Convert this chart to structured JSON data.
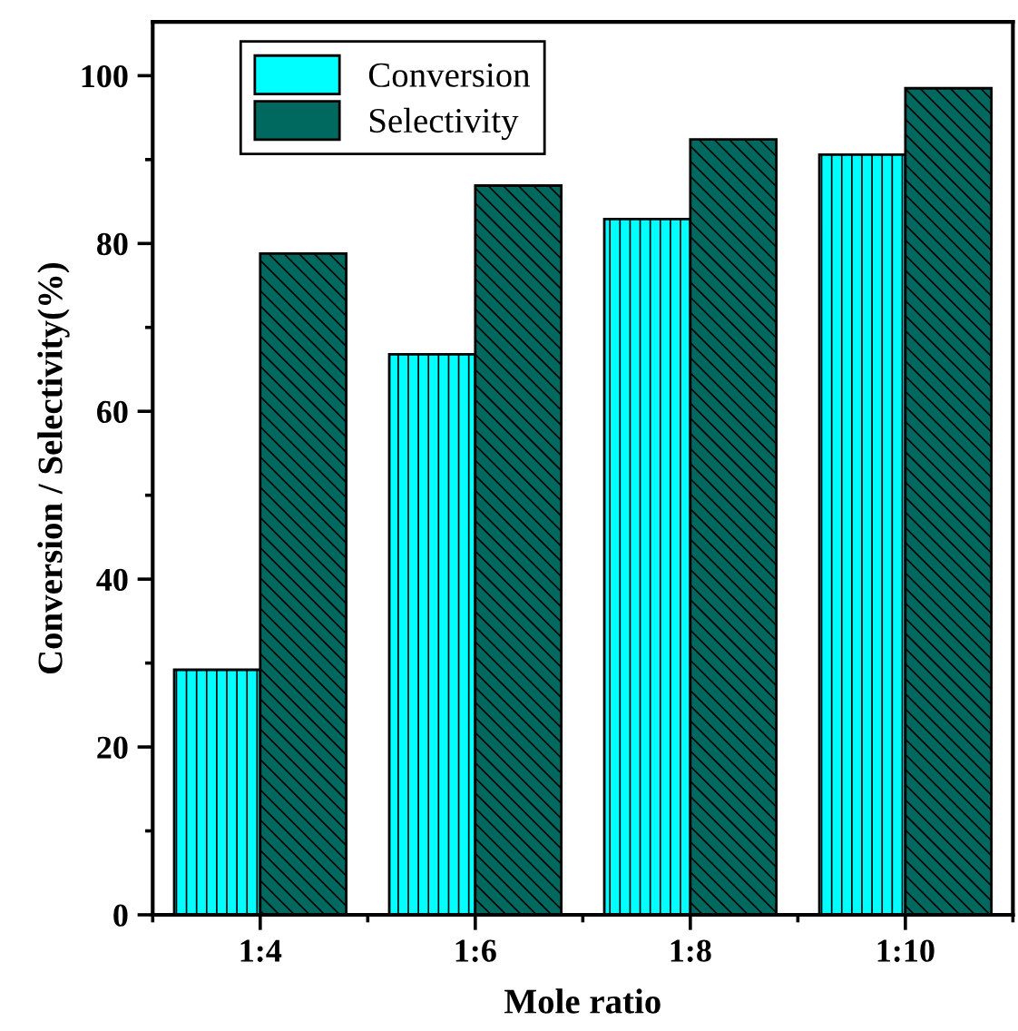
{
  "chart_data": {
    "type": "bar",
    "xlabel": "Mole ratio",
    "ylabel": "Conversion / Selectivity(%)",
    "categories": [
      "1:4",
      "1:6",
      "1:8",
      "1:10"
    ],
    "series": [
      {
        "name": "Conversion",
        "color": "#00ffff",
        "values": [
          29.2,
          66.8,
          82.9,
          90.6
        ]
      },
      {
        "name": "Selectivity",
        "color": "#00695f",
        "values": [
          78.8,
          86.9,
          92.4,
          98.5
        ]
      }
    ],
    "ylim": [
      0,
      106.4
    ],
    "yticks": [
      0,
      20,
      40,
      60,
      80,
      100
    ],
    "grid": false,
    "legend": "top left"
  }
}
